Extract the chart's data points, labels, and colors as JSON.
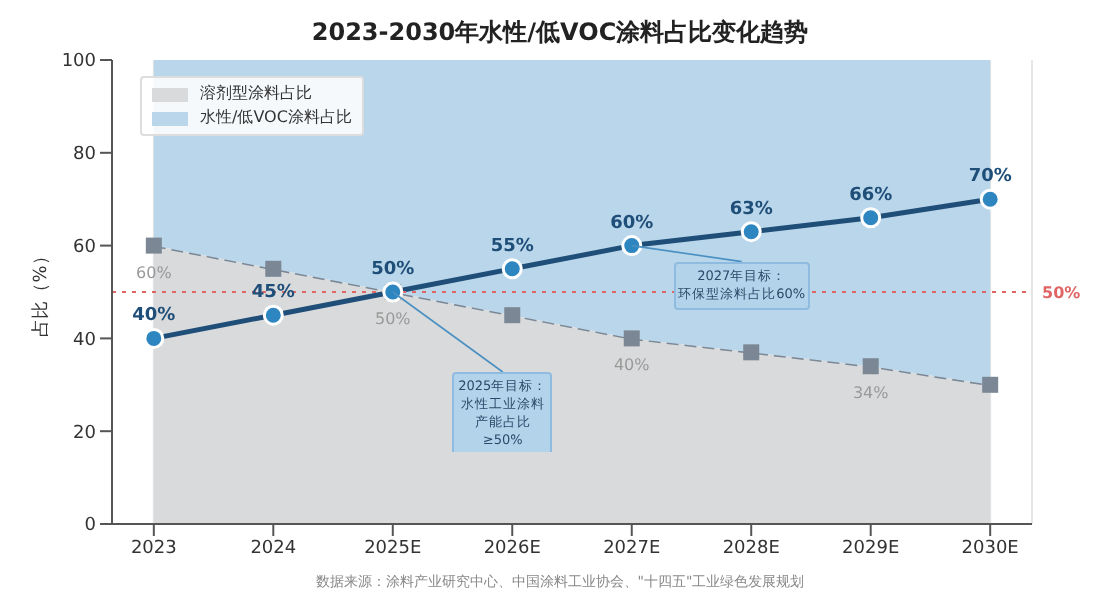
{
  "chart_data": {
    "type": "area",
    "title": "2023-2030年水性/低VOC涂料占比变化趋势",
    "ylabel": "占比（%）",
    "categories": [
      "2023",
      "2024",
      "2025E",
      "2026E",
      "2027E",
      "2028E",
      "2029E",
      "2030E"
    ],
    "stacked": true,
    "ylim": [
      0,
      100
    ],
    "yticks": [
      0,
      20,
      40,
      60,
      80,
      100
    ],
    "grid": "x",
    "legend": "top left",
    "series": [
      {
        "type": "line",
        "color": "#1f4e79",
        "marker": "circle",
        "line_style": "solid",
        "values": [
          40,
          45,
          50,
          55,
          60,
          63,
          66,
          70
        ],
        "value_labels": [
          "40%",
          "45%",
          "50%",
          "55%",
          "60%",
          "63%",
          "66%",
          "70%"
        ]
      },
      {
        "name": "溶剂型涂料占比",
        "type": "area",
        "color": "#d9dadb",
        "marker": "square",
        "line_style": "dashed",
        "values": [
          60,
          55,
          50,
          45,
          40,
          37,
          34,
          30
        ],
        "value_labels": [
          "60%",
          null,
          "50%",
          null,
          "40%",
          null,
          "34%",
          null
        ]
      },
      {
        "name": "水性/低VOC涂料占比",
        "type": "area",
        "color": "#bad6ea",
        "values": [
          40,
          45,
          50,
          55,
          60,
          63,
          66,
          70
        ]
      }
    ],
    "ref_lines": [
      {
        "axis": "y",
        "value": 50,
        "label": "50%",
        "color": "#e06666",
        "line_style": "dotted"
      }
    ],
    "annotations": [
      {
        "text": "2025年目标：水性工业涂料产能占比≥50%",
        "x": "2025E",
        "y": 50
      },
      {
        "text": "2027年目标：环保型涂料占比60%",
        "x": "2027E",
        "y": 60
      },
      "数据来源：涂料产业研究中心、中国涂料工业协会、\"十四五\"工业绿色发展规划"
    ]
  }
}
